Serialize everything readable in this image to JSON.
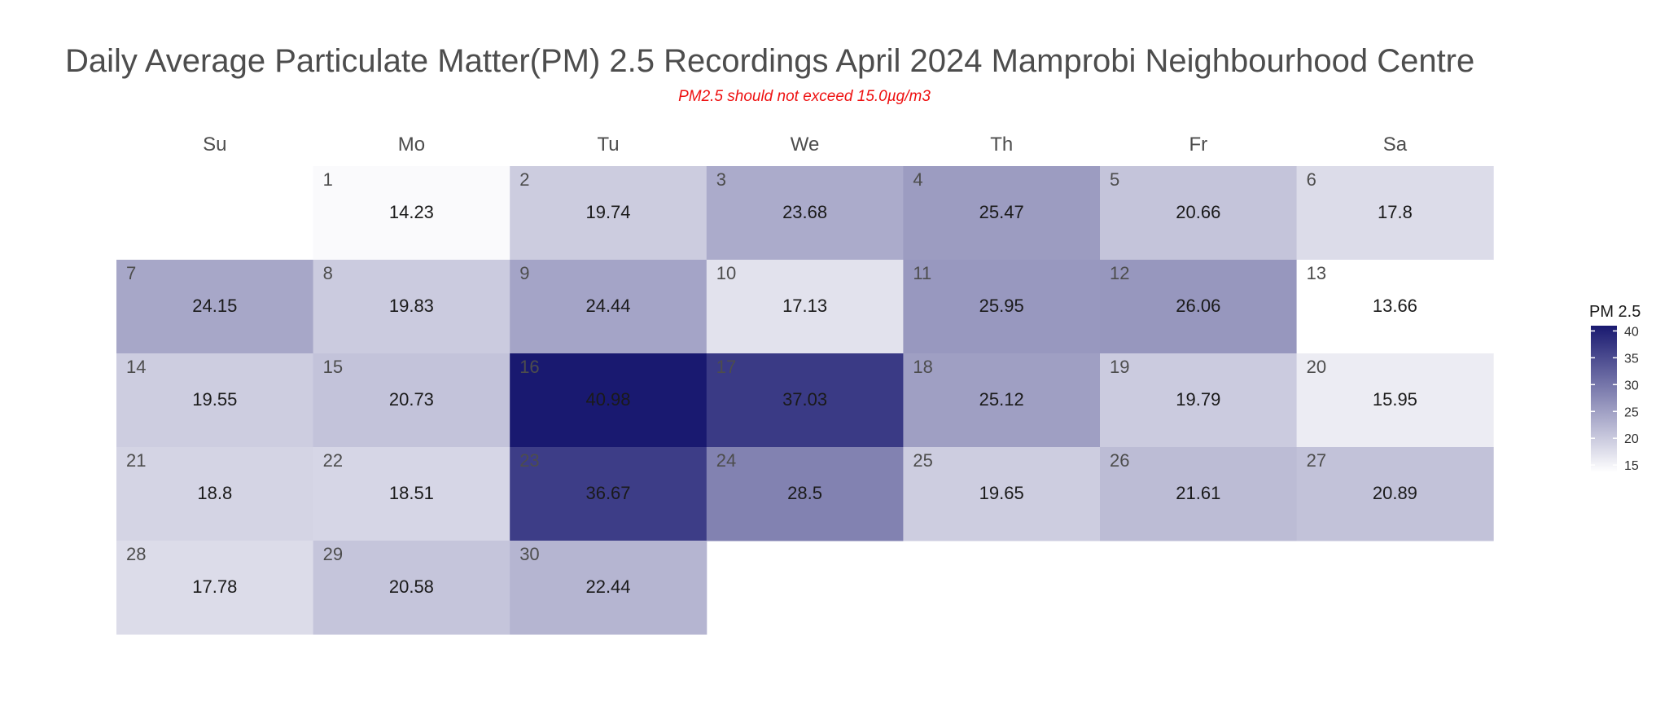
{
  "chart_data": {
    "type": "heatmap",
    "title": "Daily Average Particulate Matter(PM) 2.5 Recordings April 2024 Mamprobi Neighbourhood Centre",
    "subtitle": "PM2.5 should not exceed 15.0µg/m3",
    "weekdays": [
      "Su",
      "Mo",
      "Tu",
      "We",
      "Th",
      "Fr",
      "Sa"
    ],
    "first_weekday_index": 1,
    "days": [
      1,
      2,
      3,
      4,
      5,
      6,
      7,
      8,
      9,
      10,
      11,
      12,
      13,
      14,
      15,
      16,
      17,
      18,
      19,
      20,
      21,
      22,
      23,
      24,
      25,
      26,
      27,
      28,
      29,
      30
    ],
    "values": [
      14.23,
      19.74,
      23.68,
      25.47,
      20.66,
      17.8,
      24.15,
      19.83,
      24.44,
      17.13,
      25.95,
      26.06,
      13.66,
      19.55,
      20.73,
      40.98,
      37.03,
      25.12,
      19.79,
      15.95,
      18.8,
      18.51,
      36.67,
      28.5,
      19.65,
      21.61,
      20.89,
      17.78,
      20.58,
      22.44
    ],
    "value_labels": [
      "14.23",
      "19.74",
      "23.68",
      "25.47",
      "20.66",
      "17.8",
      "24.15",
      "19.83",
      "24.44",
      "17.13",
      "25.95",
      "26.06",
      "13.66",
      "19.55",
      "20.73",
      "40.98",
      "37.03",
      "25.12",
      "19.79",
      "15.95",
      "18.8",
      "18.51",
      "36.67",
      "28.5",
      "19.65",
      "21.61",
      "20.89",
      "17.78",
      "20.58",
      "22.44"
    ],
    "legend": {
      "title": "PM 2.5",
      "ticks": [
        15,
        20,
        25,
        30,
        35,
        40
      ],
      "tick_labels": [
        "15",
        "20",
        "25",
        "30",
        "35",
        "40"
      ],
      "placement": "right"
    },
    "color_scale": {
      "low": "#ffffff",
      "high": "#191970",
      "range": [
        13.66,
        40.98
      ]
    }
  }
}
